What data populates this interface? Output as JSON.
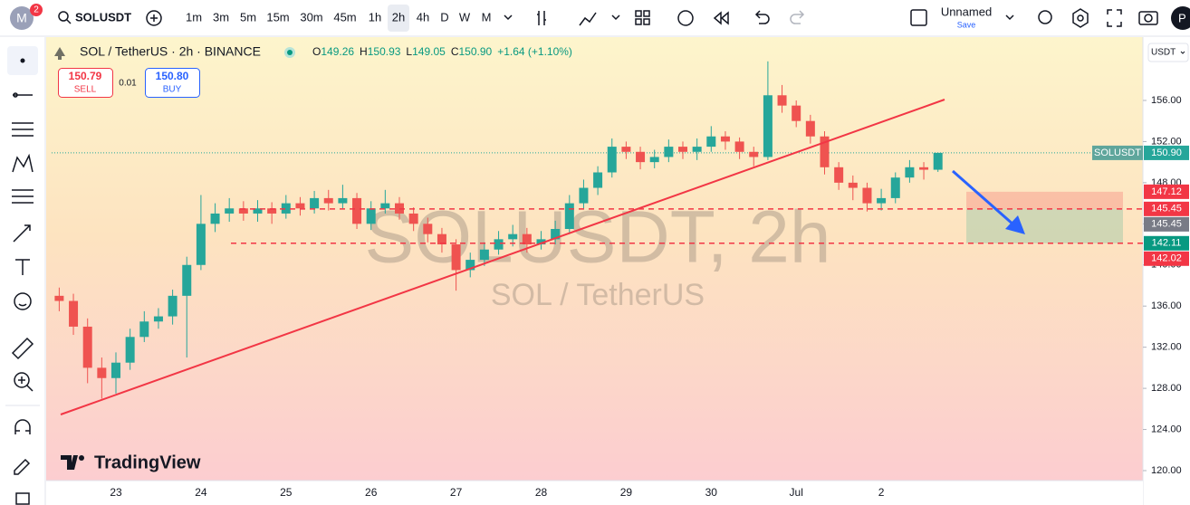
{
  "toolbar": {
    "avatar": "M",
    "avatar_badge": "2",
    "symbol": "SOLUSDT",
    "intervals": [
      "1m",
      "3m",
      "5m",
      "15m",
      "30m",
      "45m",
      "1h",
      "2h",
      "4h",
      "D",
      "W",
      "M"
    ],
    "active_interval": 7,
    "layout_name": "Unnamed",
    "save": "Save",
    "profile": "P"
  },
  "legend": {
    "title": "SOL / TetherUS · 2h · BINANCE",
    "ohlc": [
      {
        "label": "O",
        "value": "149.26"
      },
      {
        "label": "H",
        "value": "150.93"
      },
      {
        "label": "L",
        "value": "149.05"
      },
      {
        "label": "C",
        "value": "150.90"
      }
    ],
    "change": "+1.64 (+1.10%)",
    "sell": {
      "price": "150.79",
      "label": "SELL"
    },
    "spread": "0.01",
    "buy": {
      "price": "150.80",
      "label": "BUY"
    }
  },
  "currency": "USDT",
  "watermark": {
    "line1": "SOLUSDT, 2h",
    "line2": "SOL / TetherUS"
  },
  "logo": "TradingView",
  "chart_data": {
    "type": "candlestick",
    "categories": [
      null,
      null,
      null,
      null,
      "23",
      null,
      null,
      null,
      null,
      null,
      "24",
      null,
      null,
      null,
      null,
      null,
      "25",
      null,
      null,
      null,
      null,
      null,
      "26",
      null,
      null,
      null,
      null,
      null,
      "27",
      null,
      null,
      null,
      null,
      null,
      "28",
      null,
      null,
      null,
      null,
      null,
      "29",
      null,
      null,
      null,
      null,
      null,
      "30",
      null,
      null,
      null,
      null,
      null,
      "Jul",
      null,
      null,
      null,
      null,
      null,
      "2",
      null,
      null,
      null,
      null
    ],
    "open": [
      137,
      136.5,
      134,
      130,
      129,
      130.5,
      133,
      134.5,
      135,
      137,
      140,
      144,
      145,
      145.5,
      145,
      145.5,
      145,
      146,
      145.5,
      146.5,
      146,
      146.5,
      144,
      145.5,
      146,
      145,
      144,
      143,
      142,
      139.5,
      140.5,
      141.5,
      142.5,
      143,
      142,
      142.5,
      143.5,
      146,
      147.5,
      149,
      151.5,
      151,
      150,
      150.5,
      151.5,
      151,
      151.5,
      152.5,
      152,
      151,
      150.5,
      156.5,
      155.5,
      154,
      152.5,
      149.5,
      148,
      147.5,
      146,
      146.5,
      148.5,
      149.5,
      149.26
    ],
    "high": [
      137.8,
      137.2,
      134.8,
      131,
      131.5,
      133.8,
      135.5,
      135.8,
      137.6,
      140.8,
      146.8,
      146,
      146.5,
      146.2,
      146.3,
      146.1,
      146.8,
      146.6,
      147.2,
      147.3,
      147.8,
      147,
      146.2,
      147.3,
      146.6,
      145.6,
      144.6,
      143.6,
      142.5,
      141.2,
      142.2,
      143.3,
      143.9,
      143.6,
      143.3,
      144.3,
      146.8,
      148.3,
      149.6,
      152.3,
      152,
      151.5,
      151.2,
      152.2,
      152,
      152.3,
      153.5,
      153,
      152.4,
      151.5,
      159.8,
      157.5,
      156,
      154.6,
      153,
      150,
      148.7,
      148,
      147.4,
      149,
      150.2,
      150,
      150.93
    ],
    "low": [
      135.5,
      133.2,
      128.5,
      127,
      127.5,
      129.8,
      132.5,
      133.8,
      134.2,
      131,
      139.5,
      143.2,
      144.2,
      144.3,
      144.2,
      144,
      144.5,
      144.8,
      145,
      145.3,
      145.5,
      143.5,
      143.4,
      145,
      144.4,
      143.3,
      142.2,
      141.2,
      137.5,
      138.8,
      139.9,
      141,
      141.8,
      141.2,
      141.5,
      142,
      143,
      145.5,
      146.8,
      148.5,
      150.3,
      149.3,
      149.4,
      150,
      150.3,
      150.2,
      151,
      151.2,
      150.3,
      149.6,
      150.2,
      154.8,
      153.4,
      151.8,
      148.8,
      147.3,
      146.3,
      145.2,
      145.3,
      146,
      148,
      148.3,
      149.05
    ],
    "close": [
      136.5,
      134,
      130,
      129,
      130.5,
      133,
      134.5,
      135,
      137,
      140,
      144,
      145,
      145.5,
      145,
      145.5,
      145,
      146,
      145.5,
      146.5,
      146,
      146.5,
      144,
      145.5,
      146,
      145,
      144,
      143,
      142,
      139.5,
      140.5,
      141.5,
      142.5,
      143,
      142,
      142.5,
      143.5,
      146,
      147.5,
      149,
      151.5,
      151,
      150,
      150.5,
      151.5,
      151,
      151.5,
      152.5,
      152,
      151,
      150.5,
      156.5,
      155.5,
      154,
      152.5,
      149.5,
      148,
      147.5,
      146,
      146.5,
      148.5,
      149.5,
      149.26,
      150.9
    ],
    "up_color": "#26a69a",
    "down_color": "#ef5350",
    "ylim": [
      119.12,
      162.07
    ],
    "yticks": [
      {
        "value": 120,
        "label": "120.00"
      },
      {
        "value": 124,
        "label": "124.00"
      },
      {
        "value": 128,
        "label": "128.00"
      },
      {
        "value": 132,
        "label": "132.00"
      },
      {
        "value": 136,
        "label": "136.00"
      },
      {
        "value": 140,
        "label": "140.00"
      },
      {
        "value": 144,
        "label": "144.00"
      },
      {
        "value": 148,
        "label": "148.00"
      },
      {
        "value": 152,
        "label": "152.00"
      },
      {
        "value": 156,
        "label": "156.00"
      }
    ],
    "price_tags": [
      {
        "name": "SOLUSDT",
        "value": 150.9,
        "label": "150.90",
        "color": "#26a69a"
      },
      {
        "value": 147.12,
        "label": "147.12",
        "color": "#f23645"
      },
      {
        "value": 145.45,
        "label": "145.45",
        "color": "#f23645"
      },
      {
        "value": 145.45,
        "label": "145.45",
        "color": "#787b86"
      },
      {
        "value": 142.11,
        "label": "142.11",
        "color": "#089981"
      },
      {
        "value": 142.02,
        "label": "142.02",
        "color": "#f23645"
      }
    ]
  }
}
